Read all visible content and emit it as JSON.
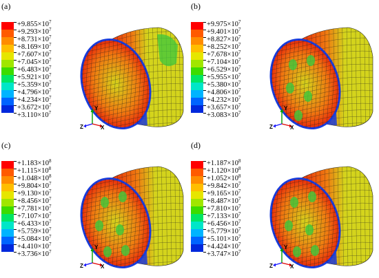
{
  "panels": [
    {
      "label": "(a)",
      "legend": [
        {
          "text": "+9.855×10",
          "exp": "7",
          "color": "#ff0000"
        },
        {
          "text": "+9.293×10",
          "exp": "7",
          "color": "#ff5a00"
        },
        {
          "text": "+8.731×10",
          "exp": "7",
          "color": "#ff8c00"
        },
        {
          "text": "+8.169×10",
          "exp": "7",
          "color": "#ffbe00"
        },
        {
          "text": "+7.607×10",
          "exp": "7",
          "color": "#e6e600"
        },
        {
          "text": "+7.045×10",
          "exp": "7",
          "color": "#a0e600"
        },
        {
          "text": "+6.483×10",
          "exp": "7",
          "color": "#3cdc00"
        },
        {
          "text": "+5.921×10",
          "exp": "7",
          "color": "#00e664"
        },
        {
          "text": "+5.359×10",
          "exp": "7",
          "color": "#00e6c8"
        },
        {
          "text": "+4.796×10",
          "exp": "7",
          "color": "#00b4ff"
        },
        {
          "text": "+4.234×10",
          "exp": "7",
          "color": "#0064ff"
        },
        {
          "text": "+3.672×10",
          "exp": "7",
          "color": "#0028dc"
        },
        {
          "text": "+3.110×10",
          "exp": "7",
          "color": ""
        }
      ]
    },
    {
      "label": "(b)",
      "legend": [
        {
          "text": "+9.975×10",
          "exp": "7",
          "color": "#ff0000"
        },
        {
          "text": "+9.401×10",
          "exp": "7",
          "color": "#ff5a00"
        },
        {
          "text": "+8.827×10",
          "exp": "7",
          "color": "#ff8c00"
        },
        {
          "text": "+8.252×10",
          "exp": "7",
          "color": "#ffbe00"
        },
        {
          "text": "+7.678×10",
          "exp": "7",
          "color": "#e6e600"
        },
        {
          "text": "+7.104×10",
          "exp": "7",
          "color": "#a0e600"
        },
        {
          "text": "+6.529×10",
          "exp": "7",
          "color": "#3cdc00"
        },
        {
          "text": "+5.955×10",
          "exp": "7",
          "color": "#00e664"
        },
        {
          "text": "+5.380×10",
          "exp": "7",
          "color": "#00e6c8"
        },
        {
          "text": "+4.806×10",
          "exp": "7",
          "color": "#00b4ff"
        },
        {
          "text": "+4.232×10",
          "exp": "7",
          "color": "#0064ff"
        },
        {
          "text": "+3.657×10",
          "exp": "7",
          "color": "#0028dc"
        },
        {
          "text": "+3.083×10",
          "exp": "7",
          "color": ""
        }
      ]
    },
    {
      "label": "(c)",
      "legend": [
        {
          "text": "+1.183×10",
          "exp": "8",
          "color": "#ff0000"
        },
        {
          "text": "+1.115×10",
          "exp": "8",
          "color": "#ff5a00"
        },
        {
          "text": "+1.048×10",
          "exp": "8",
          "color": "#ff8c00"
        },
        {
          "text": "+9.804×10",
          "exp": "7",
          "color": "#ffbe00"
        },
        {
          "text": "+9.130×10",
          "exp": "7",
          "color": "#e6e600"
        },
        {
          "text": "+8.456×10",
          "exp": "7",
          "color": "#a0e600"
        },
        {
          "text": "+7.781×10",
          "exp": "7",
          "color": "#3cdc00"
        },
        {
          "text": "+7.107×10",
          "exp": "7",
          "color": "#00e664"
        },
        {
          "text": "+6.433×10",
          "exp": "7",
          "color": "#00e6c8"
        },
        {
          "text": "+5.759×10",
          "exp": "7",
          "color": "#00b4ff"
        },
        {
          "text": "+5.084×10",
          "exp": "7",
          "color": "#0064ff"
        },
        {
          "text": "+4.410×10",
          "exp": "7",
          "color": "#0028dc"
        },
        {
          "text": "+3.736×10",
          "exp": "7",
          "color": ""
        }
      ]
    },
    {
      "label": "(d)",
      "legend": [
        {
          "text": "+1.187×10",
          "exp": "8",
          "color": "#ff0000"
        },
        {
          "text": "+1.120×10",
          "exp": "8",
          "color": "#ff5a00"
        },
        {
          "text": "+1.052×10",
          "exp": "8",
          "color": "#ff8c00"
        },
        {
          "text": "+9.842×10",
          "exp": "7",
          "color": "#ffbe00"
        },
        {
          "text": "+9.165×10",
          "exp": "7",
          "color": "#e6e600"
        },
        {
          "text": "+8.487×10",
          "exp": "7",
          "color": "#a0e600"
        },
        {
          "text": "+7.810×10",
          "exp": "7",
          "color": "#3cdc00"
        },
        {
          "text": "+7.133×10",
          "exp": "7",
          "color": "#00e664"
        },
        {
          "text": "+6.456×10",
          "exp": "7",
          "color": "#00e6c8"
        },
        {
          "text": "+5.779×10",
          "exp": "7",
          "color": "#00b4ff"
        },
        {
          "text": "+5.101×10",
          "exp": "7",
          "color": "#0064ff"
        },
        {
          "text": "+4.424×10",
          "exp": "7",
          "color": "#0028dc"
        },
        {
          "text": "+3.747×10",
          "exp": "7",
          "color": ""
        }
      ]
    }
  ],
  "axes_labels": {
    "y": "Y",
    "z": "Z",
    "x": "X"
  },
  "axis_colors": {
    "y": "#00a000",
    "z": "#1a1aff",
    "x": "#e00000"
  },
  "body_colors": {
    "red": "#e8260a",
    "orange": "#f07810",
    "yellow": "#d4d41c",
    "green": "#3cc83c",
    "blue": "#1a3cdc",
    "cyan": "#2a8cf0",
    "mesh": "#202020"
  }
}
